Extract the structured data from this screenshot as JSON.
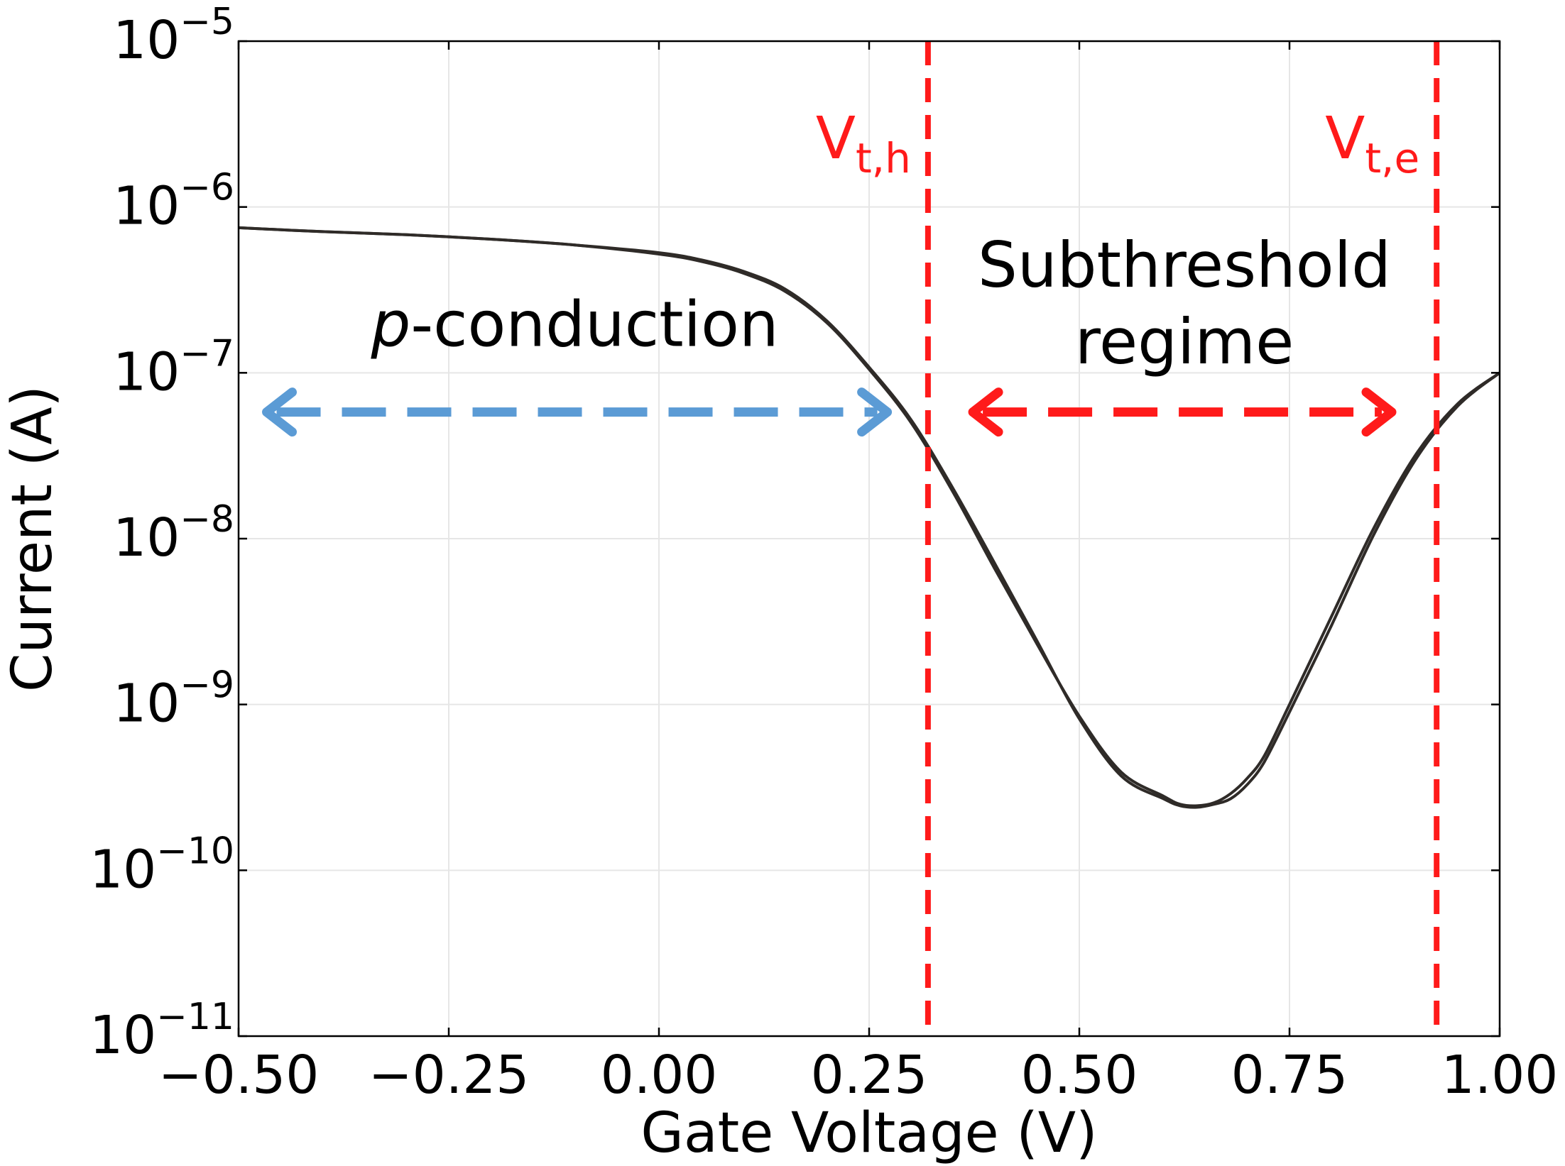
{
  "chart_data": {
    "type": "line",
    "xlabel": "Gate Voltage (V)",
    "ylabel": "Current (A)",
    "xlim": [
      -0.5,
      1.0
    ],
    "ylim": [
      1e-11,
      1e-05
    ],
    "yscale": "log",
    "grid": true,
    "xticks": [
      -0.5,
      -0.25,
      0.0,
      0.25,
      0.5,
      0.75,
      1.0
    ],
    "xtick_labels": [
      "−0.50",
      "−0.25",
      "0.00",
      "0.25",
      "0.50",
      "0.75",
      "1.00"
    ],
    "yticks": [
      {
        "value": 1e-05,
        "base": "10",
        "exp": "−5"
      },
      {
        "value": 1e-06,
        "base": "10",
        "exp": "−6"
      },
      {
        "value": 1e-07,
        "base": "10",
        "exp": "−7"
      },
      {
        "value": 1e-08,
        "base": "10",
        "exp": "−8"
      },
      {
        "value": 1e-09,
        "base": "10",
        "exp": "−9"
      },
      {
        "value": 1e-10,
        "base": "10",
        "exp": "−10"
      },
      {
        "value": 1e-11,
        "base": "10",
        "exp": "−11"
      }
    ],
    "series": [
      {
        "color": "#2f2b28",
        "x": [
          -0.5,
          -0.4,
          -0.3,
          -0.2,
          -0.1,
          0.0,
          0.05,
          0.1,
          0.15,
          0.2,
          0.25,
          0.3,
          0.35,
          0.4,
          0.45,
          0.5,
          0.55,
          0.6,
          0.62,
          0.64,
          0.66,
          0.68,
          0.7,
          0.72,
          0.75,
          0.8,
          0.85,
          0.9,
          0.95,
          1.0
        ],
        "y": [
          7.5e-07,
          7.1e-07,
          6.8e-07,
          6.4e-07,
          5.9e-07,
          5.2e-07,
          4.7e-07,
          4e-07,
          3.1e-07,
          2e-07,
          1.05e-07,
          5e-08,
          1.9e-08,
          6.5e-09,
          2.3e-09,
          8.5e-10,
          3.9e-10,
          2.8e-10,
          2.5e-10,
          2.45e-10,
          2.55e-10,
          2.9e-10,
          3.6e-10,
          4.9e-10,
          1e-09,
          3.4e-09,
          1.15e-08,
          3.2e-08,
          6.5e-08,
          1e-07
        ]
      },
      {
        "color": "#2f2b28",
        "x": [
          -0.5,
          -0.4,
          -0.3,
          -0.2,
          -0.1,
          0.0,
          0.05,
          0.1,
          0.15,
          0.2,
          0.25,
          0.3,
          0.35,
          0.4,
          0.45,
          0.5,
          0.55,
          0.6,
          0.62,
          0.64,
          0.66,
          0.68,
          0.7,
          0.72,
          0.75,
          0.8,
          0.85,
          0.9,
          0.95,
          1.0
        ],
        "y": [
          7.5e-07,
          7.1e-07,
          6.8e-07,
          6.4e-07,
          5.9e-07,
          5.3e-07,
          4.8e-07,
          4.1e-07,
          3.2e-07,
          2.05e-07,
          1.08e-07,
          5.2e-08,
          2e-08,
          7e-09,
          2.4e-09,
          8.2e-10,
          3.7e-10,
          2.7e-10,
          2.45e-10,
          2.4e-10,
          2.5e-10,
          2.7e-10,
          3.3e-10,
          4.5e-10,
          9e-10,
          3e-09,
          1.05e-08,
          3e-08,
          6.3e-08,
          1e-07
        ]
      }
    ],
    "vlines": [
      {
        "x": 0.32,
        "label_base": "V",
        "label_sub": "t,h",
        "color": "#ff1a1a"
      },
      {
        "x": 0.925,
        "label_base": "V",
        "label_sub": "t,e",
        "color": "#ff1a1a"
      }
    ],
    "annotations": [
      {
        "id": "p-conduction",
        "italic_part": "p",
        "text_part": "-conduction",
        "x": -0.1,
        "y": 1.45e-07,
        "color": "#000000"
      },
      {
        "id": "subthreshold",
        "lines": [
          "Subthreshold",
          "regime"
        ],
        "x": 0.625,
        "y": 3.3e-07,
        "color": "#000000"
      }
    ],
    "arrows": [
      {
        "id": "blue-arrow",
        "x1": -0.47,
        "x2": 0.275,
        "y": 5.8e-08,
        "color": "#5b9bd5"
      },
      {
        "id": "red-arrow",
        "x1": 0.37,
        "x2": 0.875,
        "y": 5.8e-08,
        "color": "#ff1a1a"
      }
    ]
  }
}
